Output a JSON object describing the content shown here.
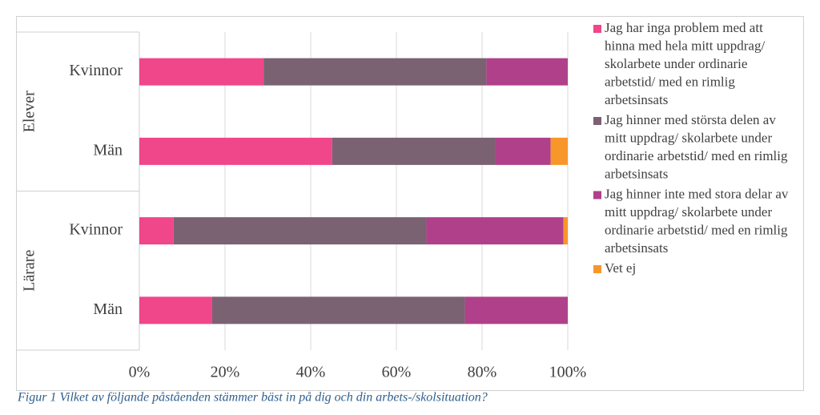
{
  "chart_data": {
    "type": "stacked-bar-horizontal",
    "caption": "Figur 1 Vilket av följande påståenden stämmer bäst in på dig och din arbets-/skolsituation?",
    "groups": [
      {
        "name": "Elever",
        "categories": [
          "Kvinnor",
          "Män"
        ]
      },
      {
        "name": "Lärare",
        "categories": [
          "Kvinnor",
          "Män"
        ]
      }
    ],
    "series": [
      {
        "name": "Jag har inga problem med att hinna med hela mitt uppdrag/ skolarbete under ordinarie arbetstid/ med en rimlig arbetsinsats",
        "color": "#f0468a",
        "values": [
          29,
          45,
          8,
          17
        ]
      },
      {
        "name": "Jag hinner med största delen av mitt uppdrag/ skolarbete under ordinarie arbetstid/ med en rimlig arbetsinsats",
        "color": "#7a6272",
        "values": [
          52,
          38,
          59,
          59
        ]
      },
      {
        "name": "Jag hinner inte med stora delar av mitt uppdrag/ skolarbete under ordinarie arbetstid/ med en rimlig arbetsinsats",
        "color": "#b0408a",
        "values": [
          19,
          13,
          32,
          24
        ]
      },
      {
        "name": "Vet ej",
        "color": "#f7962a",
        "values": [
          0,
          4,
          1,
          0
        ]
      }
    ],
    "xlim": [
      0,
      100
    ],
    "xticks": [
      {
        "value": 0,
        "label": "0%"
      },
      {
        "value": 20,
        "label": "20%"
      },
      {
        "value": 40,
        "label": "40%"
      },
      {
        "value": 60,
        "label": "60%"
      },
      {
        "value": 80,
        "label": "80%"
      },
      {
        "value": 100,
        "label": "100%"
      }
    ],
    "grid": true,
    "legend": "right"
  }
}
